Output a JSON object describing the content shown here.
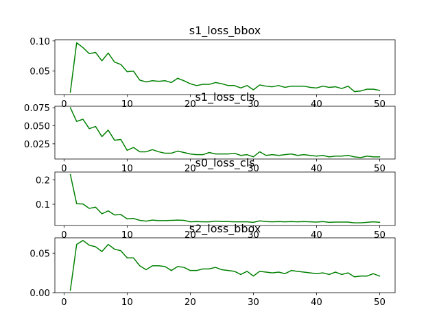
{
  "chart_data": [
    {
      "type": "line",
      "title": "s1_loss_bbox",
      "xlabel": "",
      "ylabel": "",
      "xlim": [
        -1.45,
        52.45
      ],
      "ylim": [
        0.011,
        0.102
      ],
      "grid": false,
      "xticks": [
        0,
        10,
        20,
        30,
        40,
        50
      ],
      "yticks": [
        0.05,
        0.1
      ],
      "ytick_labels": [
        "0.05",
        "0.10"
      ],
      "color": "#008000",
      "x": [
        1,
        2,
        3,
        4,
        5,
        6,
        7,
        8,
        9,
        10,
        11,
        12,
        13,
        14,
        15,
        16,
        17,
        18,
        19,
        20,
        21,
        22,
        23,
        24,
        25,
        26,
        27,
        28,
        29,
        30,
        31,
        32,
        33,
        34,
        35,
        36,
        37,
        38,
        39,
        40,
        41,
        42,
        43,
        44,
        45,
        46,
        47,
        48,
        49,
        50
      ],
      "series": [
        {
          "values": [
            0.015,
            0.097,
            0.089,
            0.079,
            0.081,
            0.067,
            0.08,
            0.065,
            0.061,
            0.049,
            0.05,
            0.035,
            0.032,
            0.034,
            0.033,
            0.034,
            0.031,
            0.038,
            0.034,
            0.029,
            0.026,
            0.028,
            0.028,
            0.031,
            0.029,
            0.026,
            0.026,
            0.022,
            0.026,
            0.019,
            0.027,
            0.025,
            0.024,
            0.026,
            0.023,
            0.025,
            0.025,
            0.025,
            0.023,
            0.022,
            0.025,
            0.023,
            0.024,
            0.021,
            0.025,
            0.016,
            0.017,
            0.02,
            0.02,
            0.018
          ]
        }
      ]
    },
    {
      "type": "line",
      "title": "s1_loss_cls",
      "xlabel": "",
      "ylabel": "",
      "xlim": [
        -1.45,
        52.45
      ],
      "ylim": [
        0.004,
        0.077
      ],
      "grid": false,
      "xticks": [
        0,
        10,
        20,
        30,
        40,
        50
      ],
      "yticks": [
        0.025,
        0.05,
        0.075
      ],
      "ytick_labels": [
        "0.025",
        "0.050",
        "0.075"
      ],
      "color": "#008000",
      "x": [
        1,
        2,
        3,
        4,
        5,
        6,
        7,
        8,
        9,
        10,
        11,
        12,
        13,
        14,
        15,
        16,
        17,
        18,
        19,
        20,
        21,
        22,
        23,
        24,
        25,
        26,
        27,
        28,
        29,
        30,
        31,
        32,
        33,
        34,
        35,
        36,
        37,
        38,
        39,
        40,
        41,
        42,
        43,
        44,
        45,
        46,
        47,
        48,
        49,
        50
      ],
      "series": [
        {
          "values": [
            0.075,
            0.056,
            0.059,
            0.046,
            0.049,
            0.035,
            0.044,
            0.03,
            0.031,
            0.016,
            0.02,
            0.014,
            0.014,
            0.017,
            0.014,
            0.012,
            0.012,
            0.015,
            0.013,
            0.011,
            0.01,
            0.01,
            0.013,
            0.011,
            0.011,
            0.011,
            0.012,
            0.009,
            0.01,
            0.007,
            0.014,
            0.009,
            0.01,
            0.009,
            0.01,
            0.011,
            0.009,
            0.01,
            0.009,
            0.008,
            0.009,
            0.007,
            0.008,
            0.008,
            0.009,
            0.007,
            0.006,
            0.008,
            0.007,
            0.007
          ]
        }
      ]
    },
    {
      "type": "line",
      "title": "s0_loss_cls",
      "xlabel": "",
      "ylabel": "",
      "xlim": [
        -1.45,
        52.45
      ],
      "ylim": [
        0.013,
        0.232
      ],
      "grid": false,
      "xticks": [
        0,
        10,
        20,
        30,
        40,
        50
      ],
      "yticks": [
        0.1,
        0.2
      ],
      "ytick_labels": [
        "0.1",
        "0.2"
      ],
      "color": "#008000",
      "x": [
        1,
        2,
        3,
        4,
        5,
        6,
        7,
        8,
        9,
        10,
        11,
        12,
        13,
        14,
        15,
        16,
        17,
        18,
        19,
        20,
        21,
        22,
        23,
        24,
        25,
        26,
        27,
        28,
        29,
        30,
        31,
        32,
        33,
        34,
        35,
        36,
        37,
        38,
        39,
        40,
        41,
        42,
        43,
        44,
        45,
        46,
        47,
        48,
        49,
        50
      ],
      "series": [
        {
          "values": [
            0.222,
            0.102,
            0.101,
            0.083,
            0.088,
            0.061,
            0.073,
            0.056,
            0.058,
            0.04,
            0.042,
            0.034,
            0.031,
            0.035,
            0.033,
            0.033,
            0.034,
            0.035,
            0.034,
            0.028,
            0.029,
            0.028,
            0.028,
            0.031,
            0.029,
            0.029,
            0.028,
            0.028,
            0.028,
            0.026,
            0.032,
            0.029,
            0.028,
            0.029,
            0.028,
            0.029,
            0.028,
            0.029,
            0.028,
            0.027,
            0.029,
            0.026,
            0.027,
            0.027,
            0.027,
            0.024,
            0.024,
            0.026,
            0.028,
            0.026
          ]
        }
      ]
    },
    {
      "type": "line",
      "title": "s2_loss_bbox",
      "xlabel": "",
      "ylabel": "",
      "xlim": [
        -1.45,
        52.45
      ],
      "ylim": [
        0.0,
        0.0693
      ],
      "grid": false,
      "xticks": [
        0,
        10,
        20,
        30,
        40,
        50
      ],
      "yticks": [
        0.0,
        0.05
      ],
      "ytick_labels": [
        "0.00",
        "0.05"
      ],
      "xtick_labels": [
        "0",
        "10",
        "20",
        "30",
        "40",
        "50"
      ],
      "color": "#008000",
      "x": [
        1,
        2,
        3,
        4,
        5,
        6,
        7,
        8,
        9,
        10,
        11,
        12,
        13,
        14,
        15,
        16,
        17,
        18,
        19,
        20,
        21,
        22,
        23,
        24,
        25,
        26,
        27,
        28,
        29,
        30,
        31,
        32,
        33,
        34,
        35,
        36,
        37,
        38,
        39,
        40,
        41,
        42,
        43,
        44,
        45,
        46,
        47,
        48,
        49,
        50
      ],
      "series": [
        {
          "values": [
            0.003,
            0.061,
            0.066,
            0.06,
            0.058,
            0.052,
            0.061,
            0.055,
            0.053,
            0.044,
            0.044,
            0.034,
            0.029,
            0.034,
            0.034,
            0.033,
            0.028,
            0.033,
            0.032,
            0.028,
            0.028,
            0.03,
            0.03,
            0.032,
            0.029,
            0.028,
            0.027,
            0.023,
            0.027,
            0.021,
            0.027,
            0.026,
            0.025,
            0.026,
            0.024,
            0.028,
            0.027,
            0.026,
            0.025,
            0.024,
            0.025,
            0.023,
            0.026,
            0.023,
            0.025,
            0.02,
            0.021,
            0.021,
            0.024,
            0.021
          ]
        }
      ]
    }
  ]
}
